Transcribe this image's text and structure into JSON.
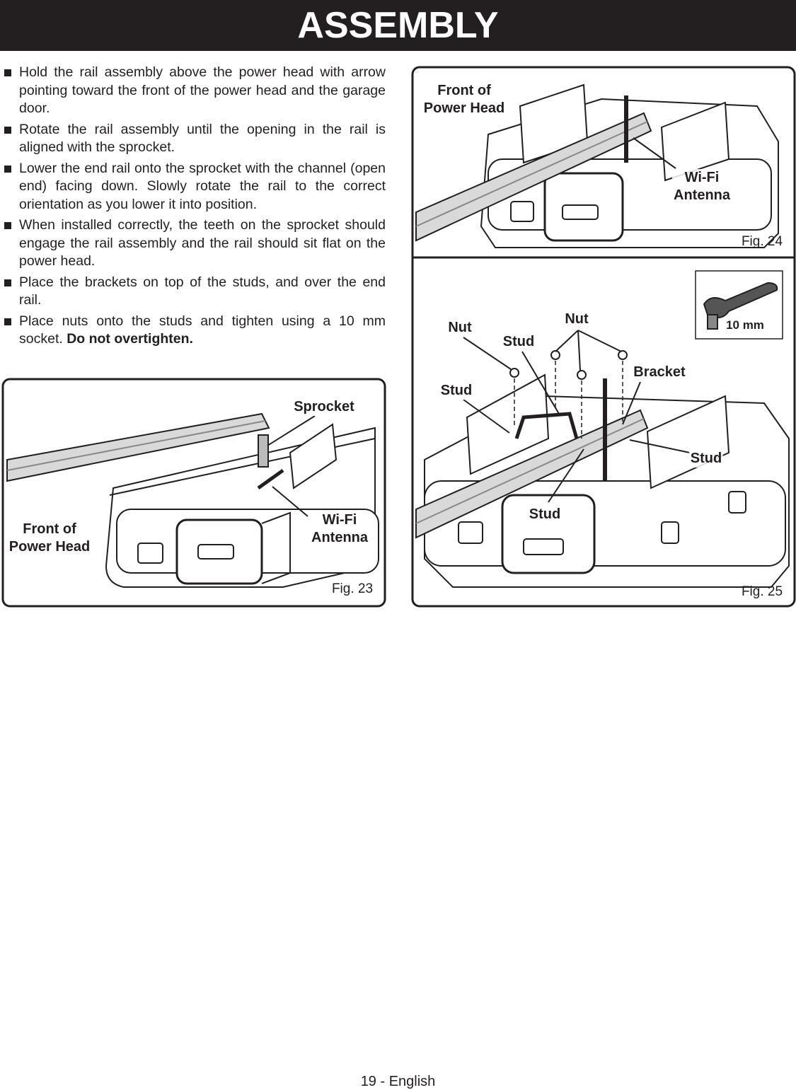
{
  "header": {
    "title": "ASSEMBLY"
  },
  "instructions": [
    {
      "text": "Hold the rail assembly above the power head with arrow pointing toward the front of the power head and the garage door."
    },
    {
      "text": "Rotate the rail assembly until the opening in the rail is aligned with the sprocket."
    },
    {
      "text": "Lower the end rail onto the sprocket with the channel (open end) facing down. Slowly rotate the rail to the correct orientation as you lower it into position."
    },
    {
      "text": "When installed correctly, the teeth on the sprocket should engage the rail assembly and the rail should sit flat on the power head."
    },
    {
      "text": "Place the brackets on top of the studs, and over the end rail."
    },
    {
      "text": "Place nuts onto the studs and tighten using a 10 mm socket.",
      "emphasis": "Do not overtighten."
    }
  ],
  "figures": [
    {
      "caption": "Fig. 23",
      "labels": {
        "sprocket": [
          "Sprocket"
        ],
        "front": [
          "Front of",
          "Power Head"
        ],
        "antenna": [
          "Wi-Fi",
          "Antenna"
        ]
      }
    },
    {
      "caption": "Fig. 24",
      "labels": {
        "front": [
          "Front of",
          "Power Head"
        ],
        "antenna": [
          "Wi-Fi",
          "Antenna"
        ]
      }
    },
    {
      "caption": "Fig. 25",
      "labels": {
        "nut_left": [
          "Nut"
        ],
        "nut_right": [
          "Nut"
        ],
        "stud_top": [
          "Stud"
        ],
        "stud_left": [
          "Stud"
        ],
        "bracket": [
          "Bracket"
        ],
        "stud_right": [
          "Stud"
        ],
        "stud_bottom": [
          "Stud"
        ],
        "tool": [
          "10 mm"
        ]
      }
    }
  ],
  "footer": {
    "page": "19 - English"
  }
}
